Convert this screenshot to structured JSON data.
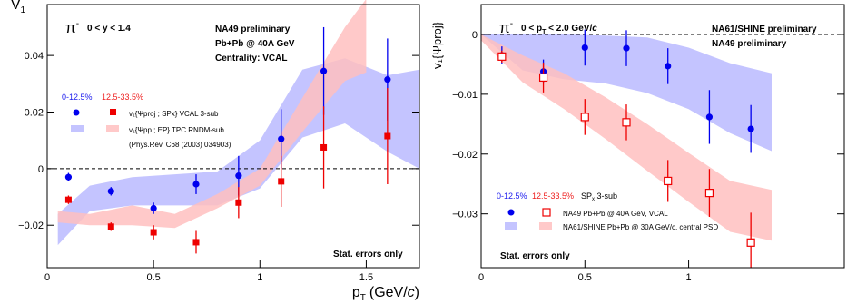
{
  "chart_data": [
    {
      "type": "scatter",
      "ylabel": "V",
      "ylabel_sub": "1",
      "xlabel": "p",
      "xlabel_sub": "T",
      "xlabel_unit": "(GeV/",
      "xlabel_unit_italic": "c",
      "xlabel_unit_end": ")",
      "particle": "π",
      "particle_sup": "-",
      "rapidity_cut": "0 < y < 1.4",
      "info_lines": [
        "NA49 preliminary",
        "Pb+Pb @ 40A GeV",
        "Centrality: VCAL"
      ],
      "centrality_blue": "0-12.5%",
      "centrality_red": "12.5-33.5%",
      "legend": {
        "row1": "v₁{Ψproj ; SPx} VCAL 3-sub",
        "row2": "v₁{Ψpp ; EP} TPC RNDM-sub",
        "row3": "(Phys.Rev. C68 (2003) 034903)"
      },
      "note": "Stat. errors only",
      "xlim": [
        0,
        1.75
      ],
      "ylim": [
        -0.035,
        0.058
      ],
      "x_ticks": [
        0,
        0.5,
        1,
        1.5
      ],
      "x_tick_labels": [
        "0",
        "0.5",
        "1",
        "1.5"
      ],
      "y_ticks": [
        -0.02,
        0,
        0.02,
        0.04
      ],
      "y_tick_labels": [
        "−0.02",
        "0",
        "0.02",
        "0.04"
      ],
      "series": [
        {
          "marker": "circle-filled",
          "color": "#0000ee",
          "x": [
            0.1,
            0.3,
            0.5,
            0.7,
            0.9,
            1.1,
            1.3,
            1.6
          ],
          "y": [
            -0.003,
            -0.008,
            -0.014,
            -0.0055,
            -0.0025,
            0.0105,
            0.0345,
            0.0315
          ],
          "err": [
            0.0015,
            0.0015,
            0.002,
            0.0035,
            0.007,
            0.0105,
            0.0155,
            0.0145
          ]
        },
        {
          "marker": "square-filled",
          "color": "#ee0000",
          "x": [
            0.1,
            0.3,
            0.5,
            0.7,
            0.9,
            1.1,
            1.3,
            1.6
          ],
          "y": [
            -0.011,
            -0.0205,
            -0.0225,
            -0.026,
            -0.012,
            -0.0045,
            0.0075,
            0.0115
          ],
          "err": [
            0.0015,
            0.0015,
            0.0025,
            0.004,
            0.0055,
            0.009,
            0.0145,
            0.017
          ]
        }
      ],
      "bands": [
        {
          "color": "#b0b0ff",
          "x": [
            0.05,
            0.2,
            0.4,
            0.6,
            0.8,
            1.0,
            1.2,
            1.4,
            1.6,
            1.75
          ],
          "y_low": [
            -0.027,
            -0.015,
            -0.013,
            -0.013,
            -0.013,
            -0.007,
            0.011,
            0.016,
            0.006,
            0.0
          ],
          "y_high": [
            -0.016,
            -0.006,
            -0.003,
            -0.002,
            -0.001,
            0.01,
            0.035,
            0.039,
            0.033,
            0.035
          ]
        },
        {
          "color": "#ffc0c0",
          "x": [
            0.05,
            0.2,
            0.4,
            0.6,
            0.8,
            1.0,
            1.2,
            1.4,
            1.5
          ],
          "y_low": [
            -0.019,
            -0.02,
            -0.02,
            -0.021,
            -0.014,
            -0.006,
            0.013,
            0.031,
            0.034
          ],
          "y_high": [
            -0.015,
            -0.016,
            -0.013,
            -0.016,
            -0.009,
            0.0,
            0.025,
            0.05,
            0.06
          ]
        }
      ]
    },
    {
      "type": "scatter",
      "ylabel": "v₁{Ψproj}",
      "particle": "π",
      "particle_sup": "-",
      "pt_cut": "0 < p",
      "pt_cut_sub": "T",
      "pt_cut_end": " < 2.0 GeV/",
      "pt_cut_italic": "c",
      "info_lines": [
        "NA61/SHINE preliminary",
        "NA49 preliminary"
      ],
      "centrality_blue": "0-12.5%",
      "centrality_red": "12.5-33.5%",
      "legend_header_tail": "SP",
      "legend_header_sub": "x",
      "legend_header_end": " 3-sub",
      "legend": {
        "row1": "NA49 Pb+Pb @ 40A GeV, VCAL",
        "row2": "NA61/SHINE Pb+Pb @ 30A GeV/c, central PSD"
      },
      "note": "Stat. errors only",
      "xlim": [
        0,
        1.75
      ],
      "ylim": [
        -0.039,
        0.005
      ],
      "x_ticks": [
        0,
        0.5,
        1
      ],
      "x_tick_labels": [
        "0",
        "0.5",
        "1"
      ],
      "y_ticks": [
        -0.03,
        -0.02,
        -0.01,
        0
      ],
      "y_tick_labels": [
        "−0.03",
        "−0.02",
        "−0.01",
        "0"
      ],
      "series": [
        {
          "marker": "circle-filled",
          "color": "#0000ee",
          "x": [
            0.1,
            0.3,
            0.5,
            0.7,
            0.9,
            1.1,
            1.3
          ],
          "y": [
            -0.0035,
            -0.0062,
            -0.0022,
            -0.0023,
            -0.0053,
            -0.0138,
            -0.0158
          ],
          "err": [
            0.0015,
            0.002,
            0.003,
            0.003,
            0.003,
            0.0045,
            0.004
          ]
        },
        {
          "marker": "square-open",
          "color": "#ee0000",
          "x": [
            0.1,
            0.3,
            0.5,
            0.7,
            0.9,
            1.1,
            1.3
          ],
          "y": [
            -0.0037,
            -0.0072,
            -0.0138,
            -0.0147,
            -0.0245,
            -0.0265,
            -0.0348
          ],
          "err": [
            0.001,
            0.0025,
            0.003,
            0.003,
            0.0035,
            0.004,
            0.005
          ]
        }
      ],
      "bands": [
        {
          "color": "#b0b0ff",
          "x": [
            0.0,
            0.2,
            0.4,
            0.6,
            0.8,
            1.0,
            1.2,
            1.4
          ],
          "y_low": [
            0.0,
            -0.006,
            -0.0075,
            -0.0082,
            -0.0098,
            -0.0125,
            -0.0165,
            -0.0195
          ],
          "y_high": [
            0.0,
            0.0,
            0.0,
            -0.0002,
            -0.0005,
            -0.0022,
            -0.0048,
            -0.0065
          ]
        },
        {
          "color": "#ffc0c0",
          "x": [
            0.0,
            0.2,
            0.4,
            0.6,
            0.8,
            1.0,
            1.2,
            1.4
          ],
          "y_low": [
            -0.001,
            -0.008,
            -0.0125,
            -0.0175,
            -0.0228,
            -0.028,
            -0.033,
            -0.0345
          ],
          "y_high": [
            0.0,
            -0.0035,
            -0.0065,
            -0.0105,
            -0.015,
            -0.0198,
            -0.0245,
            -0.026
          ]
        }
      ]
    }
  ]
}
